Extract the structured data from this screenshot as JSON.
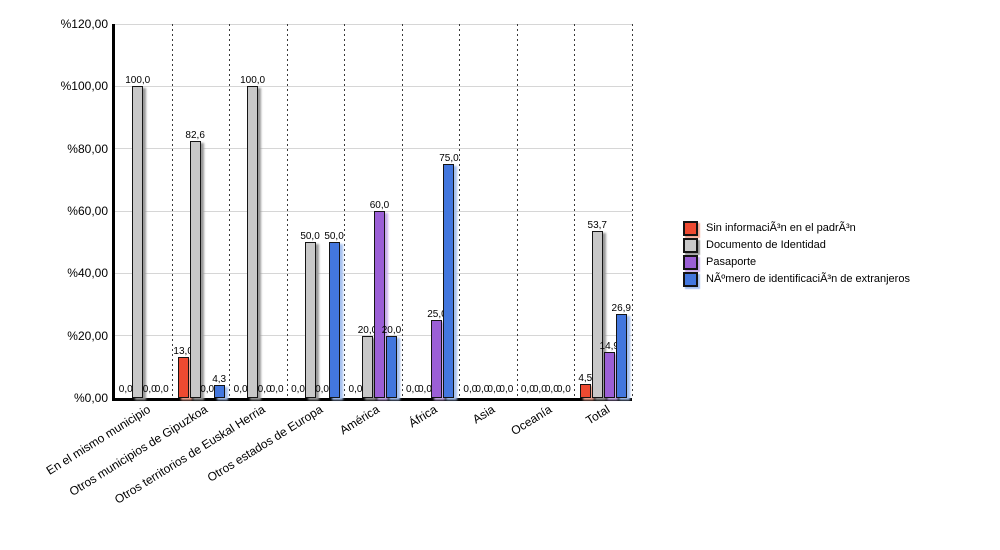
{
  "chart_data": {
    "type": "bar",
    "title": "",
    "xlabel": "",
    "ylabel": "",
    "categories": [
      "En el mismo municipio",
      "Otros municipios de Gipuzkoa",
      "Otros territorios de Euskal Herria",
      "Otros estados de Europa",
      "América",
      "África",
      "Asia",
      "Oceanía",
      "Total"
    ],
    "series": [
      {
        "name": "Sin informaciÃ³n en el padrÃ³n",
        "color": "#ee4a31",
        "shadow": "#f4a894",
        "values": [
          0,
          13.0,
          0,
          0,
          0,
          0,
          0,
          0,
          4.5
        ]
      },
      {
        "name": "Documento de Identidad",
        "color": "#c8c8c8",
        "shadow": "#999999",
        "values": [
          100.0,
          82.6,
          100.0,
          50.0,
          20.0,
          0,
          0,
          0,
          53.7
        ]
      },
      {
        "name": "Pasaporte",
        "color": "#9b5fd6",
        "shadow": "#c9adec",
        "values": [
          0,
          0,
          0,
          0,
          60.0,
          25.0,
          0,
          0,
          14.9
        ]
      },
      {
        "name": "NÃºmero de identificaciÃ³n de extranjeros",
        "color": "#4377de",
        "shadow": "#a6c1f0",
        "values": [
          0,
          4.3,
          0,
          50.0,
          20.0,
          75.0,
          0,
          0,
          26.9
        ]
      }
    ],
    "ylim": [
      0,
      120
    ],
    "y_ticks": [
      0,
      20,
      40,
      60,
      80,
      100,
      120
    ],
    "y_tick_labels": [
      "%0,00",
      "%20,00",
      "%40,00",
      "%60,00",
      "%80,00",
      "%100,00",
      "%120,00"
    ],
    "value_label_decimal_separator": ",",
    "grid": true,
    "legend_position": "right"
  }
}
